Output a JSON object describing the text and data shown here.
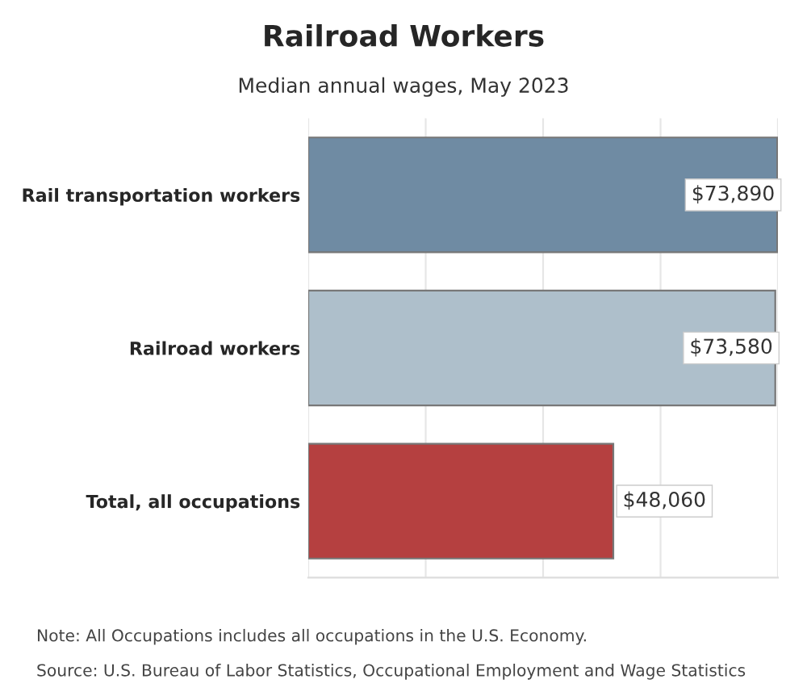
{
  "chart_data": {
    "type": "bar",
    "orientation": "horizontal",
    "title": "Railroad Workers",
    "subtitle": "Median annual wages, May 2023",
    "categories": [
      "Rail transportation workers",
      "Railroad workers",
      "Total, all occupations"
    ],
    "values": [
      73890,
      73580,
      48060
    ],
    "colors": [
      "#6f8ba3",
      "#aebfcb",
      "#b54040"
    ],
    "value_labels": [
      "$73,890",
      "$73,580",
      "$48,060"
    ],
    "xlim": [
      0,
      74000
    ],
    "xticks": [
      {
        "value": 0,
        "label": null
      },
      {
        "value": 18500,
        "label": null
      },
      {
        "value": 37000,
        "label": null
      },
      {
        "value": 55500,
        "label": null
      },
      {
        "value": 74000,
        "label": null
      }
    ],
    "grid": "x",
    "tick_labels": "y",
    "annotations": [
      "Note: All Occupations includes all occupations in the U.S. Economy.",
      "Source: U.S. Bureau of Labor Statistics, Occupational Employment and Wage Statistics"
    ]
  }
}
